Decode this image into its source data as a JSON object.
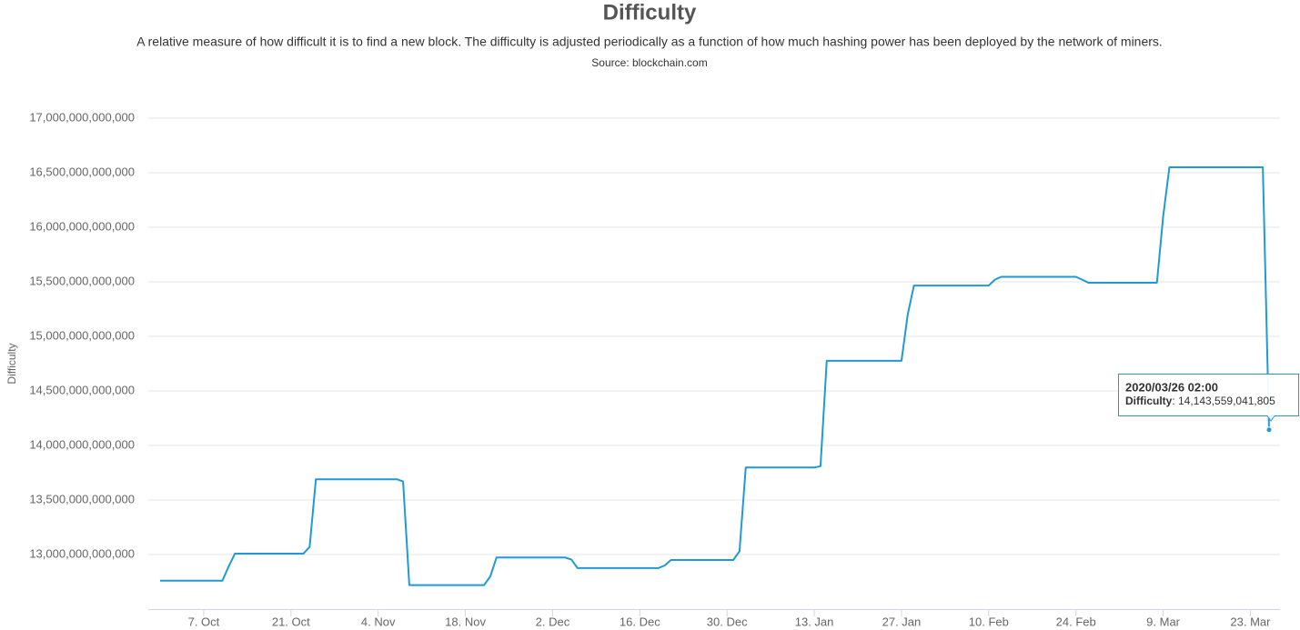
{
  "chart_data": {
    "type": "line",
    "title": "Difficulty",
    "subtitle": "A relative measure of how difficult it is to find a new block. The difficulty is adjusted periodically as a function of how much hashing power has been deployed by the network of miners.",
    "source": "Source: blockchain.com",
    "ylabel": "Difficulty",
    "ylim": [
      12500000000000,
      17000000000000
    ],
    "yticks": [
      {
        "value": 13000000000000,
        "label": "13,000,000,000,000"
      },
      {
        "value": 13500000000000,
        "label": "13,500,000,000,000"
      },
      {
        "value": 14000000000000,
        "label": "14,000,000,000,000"
      },
      {
        "value": 14500000000000,
        "label": "14,500,000,000,000"
      },
      {
        "value": 15000000000000,
        "label": "15,000,000,000,000"
      },
      {
        "value": 15500000000000,
        "label": "15,500,000,000,000"
      },
      {
        "value": 16000000000000,
        "label": "16,000,000,000,000"
      },
      {
        "value": 16500000000000,
        "label": "16,500,000,000,000"
      },
      {
        "value": 17000000000000,
        "label": "17,000,000,000,000"
      }
    ],
    "grid": true,
    "categories": [
      null,
      null,
      null,
      null,
      null,
      null,
      null,
      "7. Oct",
      null,
      null,
      null,
      null,
      null,
      null,
      null,
      null,
      null,
      null,
      null,
      null,
      null,
      "21. Oct",
      null,
      null,
      null,
      null,
      null,
      null,
      null,
      null,
      null,
      null,
      null,
      null,
      null,
      "4. Nov",
      null,
      null,
      null,
      null,
      null,
      null,
      null,
      null,
      null,
      null,
      null,
      null,
      null,
      "18. Nov",
      null,
      null,
      null,
      null,
      null,
      null,
      null,
      null,
      null,
      null,
      null,
      null,
      null,
      "2. Dec",
      null,
      null,
      null,
      null,
      null,
      null,
      null,
      null,
      null,
      null,
      null,
      null,
      null,
      "16. Dec",
      null,
      null,
      null,
      null,
      null,
      null,
      null,
      null,
      null,
      null,
      null,
      null,
      null,
      "30. Dec",
      null,
      null,
      null,
      null,
      null,
      null,
      null,
      null,
      null,
      null,
      null,
      null,
      null,
      "13. Jan",
      null,
      null,
      null,
      null,
      null,
      null,
      null,
      null,
      null,
      null,
      null,
      null,
      null,
      "27. Jan",
      null,
      null,
      null,
      null,
      null,
      null,
      null,
      null,
      null,
      null,
      null,
      null,
      null,
      "10. Feb",
      null,
      null,
      null,
      null,
      null,
      null,
      null,
      null,
      null,
      null,
      null,
      null,
      null,
      "24. Feb",
      null,
      null,
      null,
      null,
      null,
      null,
      null,
      null,
      null,
      null,
      null,
      null,
      null,
      "9. Mar",
      null,
      null,
      null,
      null,
      null,
      null,
      null,
      null,
      null,
      null,
      null,
      null,
      null,
      "23. Mar",
      null,
      null,
      null
    ],
    "series": [
      {
        "name": "Difficulty",
        "color": "#1f9ad6",
        "values": [
          12760000000000,
          12760000000000,
          12760000000000,
          12760000000000,
          12760000000000,
          12760000000000,
          12760000000000,
          12760000000000,
          12760000000000,
          12760000000000,
          12760000000000,
          12890000000000,
          13008000000000,
          13008000000000,
          13008000000000,
          13008000000000,
          13008000000000,
          13008000000000,
          13008000000000,
          13008000000000,
          13008000000000,
          13008000000000,
          13008000000000,
          13008000000000,
          13070000000000,
          13690000000000,
          13690000000000,
          13690000000000,
          13690000000000,
          13690000000000,
          13690000000000,
          13690000000000,
          13690000000000,
          13690000000000,
          13690000000000,
          13690000000000,
          13690000000000,
          13690000000000,
          13690000000000,
          13670000000000,
          12720000000000,
          12720000000000,
          12720000000000,
          12720000000000,
          12720000000000,
          12720000000000,
          12720000000000,
          12720000000000,
          12720000000000,
          12720000000000,
          12720000000000,
          12720000000000,
          12720000000000,
          12800000000000,
          12973000000000,
          12973000000000,
          12973000000000,
          12973000000000,
          12973000000000,
          12973000000000,
          12973000000000,
          12973000000000,
          12973000000000,
          12973000000000,
          12973000000000,
          12973000000000,
          12955000000000,
          12876000000000,
          12876000000000,
          12876000000000,
          12876000000000,
          12876000000000,
          12876000000000,
          12876000000000,
          12876000000000,
          12876000000000,
          12876000000000,
          12876000000000,
          12876000000000,
          12876000000000,
          12876000000000,
          12900000000000,
          12950000000000,
          12950000000000,
          12950000000000,
          12950000000000,
          12950000000000,
          12950000000000,
          12950000000000,
          12950000000000,
          12950000000000,
          12950000000000,
          12950000000000,
          13030000000000,
          13798000000000,
          13798000000000,
          13798000000000,
          13798000000000,
          13798000000000,
          13798000000000,
          13798000000000,
          13798000000000,
          13798000000000,
          13798000000000,
          13798000000000,
          13798000000000,
          13810000000000,
          14776000000000,
          14776000000000,
          14776000000000,
          14776000000000,
          14776000000000,
          14776000000000,
          14776000000000,
          14776000000000,
          14776000000000,
          14776000000000,
          14776000000000,
          14776000000000,
          14776000000000,
          15200000000000,
          15466000000000,
          15466000000000,
          15466000000000,
          15466000000000,
          15466000000000,
          15466000000000,
          15466000000000,
          15466000000000,
          15466000000000,
          15466000000000,
          15466000000000,
          15466000000000,
          15466000000000,
          15520000000000,
          15546000000000,
          15546000000000,
          15546000000000,
          15546000000000,
          15546000000000,
          15546000000000,
          15546000000000,
          15546000000000,
          15546000000000,
          15546000000000,
          15546000000000,
          15546000000000,
          15546000000000,
          15520000000000,
          15492000000000,
          15492000000000,
          15492000000000,
          15492000000000,
          15492000000000,
          15492000000000,
          15492000000000,
          15492000000000,
          15492000000000,
          15492000000000,
          15492000000000,
          15492000000000,
          16100000000000,
          16550000000000,
          16550000000000,
          16550000000000,
          16550000000000,
          16550000000000,
          16550000000000,
          16550000000000,
          16550000000000,
          16550000000000,
          16550000000000,
          16550000000000,
          16550000000000,
          16550000000000,
          16550000000000,
          16550000000000,
          16550000000000,
          14143559041805
        ]
      }
    ],
    "tooltip": {
      "title": "2020/03/26 02:00",
      "label": "Difficulty",
      "value": ": 14,143,559,041,805"
    }
  }
}
